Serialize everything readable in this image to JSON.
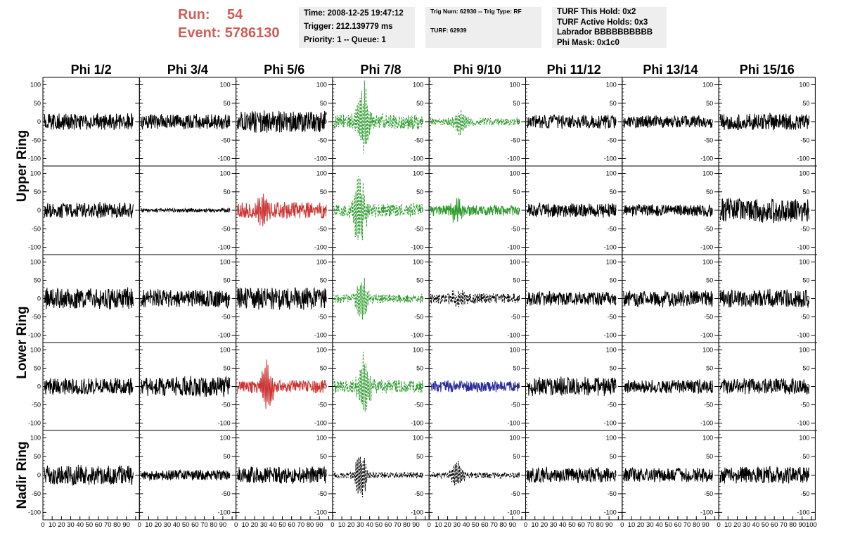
{
  "header": {
    "run_label": "Run:",
    "run_value": "54",
    "event_label": "Event:",
    "event_value": "5786130",
    "time_line": "Time: 2008-12-25 19:47:12",
    "trigger_line": "Trigger: 212.139779 ms",
    "priority_line": "Priority: 1 -- Queue: 1",
    "trig_line": "Trig Num: 62930 -- Trig Type: RF",
    "turf_line": "TURF: 62939",
    "turf_hold_line": "TURF This Hold: 0x2",
    "turf_active_line": "TURF Active Holds: 0x3",
    "labrador_line": "Labrador BBBBBBBBBB",
    "phimask_line": "Phi Mask: 0x1c0"
  },
  "colors": {
    "header_red": "#cc5f5a",
    "info_bg": "#eeeeee",
    "trace_default": "#000000",
    "trace_green": "#2a9a2a",
    "trace_red": "#cc3333",
    "trace_blue": "#2a2a9a"
  },
  "chart_data": {
    "type": "line",
    "description_columns": [
      "Phi 1/2",
      "Phi 3/4",
      "Phi 5/6",
      "Phi 7/8",
      "Phi 9/10",
      "Phi 11/12",
      "Phi 13/14",
      "Phi 15/16"
    ],
    "rows": [
      "Upper Ring",
      "Lower Ring",
      "Nadir Ring"
    ],
    "ylim": [
      -120,
      120
    ],
    "yticks": [
      -100,
      -50,
      0,
      50,
      100
    ],
    "xlim": [
      0,
      100
    ],
    "xticks": [
      0,
      10,
      20,
      30,
      40,
      50,
      60,
      70,
      80,
      90,
      100
    ],
    "panels": [
      {
        "row": 0,
        "col": 0,
        "color": "black",
        "style": "solid",
        "amp": 22
      },
      {
        "row": 0,
        "col": 1,
        "color": "black",
        "style": "solid",
        "amp": 20
      },
      {
        "row": 0,
        "col": 2,
        "color": "black",
        "style": "solid",
        "amp": 28
      },
      {
        "row": 0,
        "col": 3,
        "color": "green",
        "style": "dashed",
        "amp": 20,
        "pulse": 100
      },
      {
        "row": 0,
        "col": 4,
        "color": "green",
        "style": "dashed",
        "amp": 10,
        "pulse": 40
      },
      {
        "row": 0,
        "col": 5,
        "color": "black",
        "style": "solid",
        "amp": 18
      },
      {
        "row": 0,
        "col": 6,
        "color": "black",
        "style": "solid",
        "amp": 16
      },
      {
        "row": 0,
        "col": 7,
        "color": "black",
        "style": "solid",
        "amp": 22
      },
      {
        "row": 1,
        "col": 0,
        "color": "black",
        "style": "solid",
        "amp": 20
      },
      {
        "row": 1,
        "col": 1,
        "color": "black",
        "style": "solid",
        "amp": 5
      },
      {
        "row": 1,
        "col": 2,
        "color": "red",
        "style": "solid",
        "amp": 22,
        "pulse": 45
      },
      {
        "row": 1,
        "col": 3,
        "color": "green",
        "style": "dashed",
        "amp": 18,
        "pulse": 110
      },
      {
        "row": 1,
        "col": 4,
        "color": "green",
        "style": "solid",
        "amp": 14,
        "pulse": 30
      },
      {
        "row": 1,
        "col": 5,
        "color": "black",
        "style": "solid",
        "amp": 18
      },
      {
        "row": 1,
        "col": 6,
        "color": "black",
        "style": "solid",
        "amp": 16
      },
      {
        "row": 1,
        "col": 7,
        "color": "black",
        "style": "solid",
        "amp": 32
      },
      {
        "row": 2,
        "col": 0,
        "color": "black",
        "style": "solid",
        "amp": 28
      },
      {
        "row": 2,
        "col": 1,
        "color": "black",
        "style": "solid",
        "amp": 24
      },
      {
        "row": 2,
        "col": 2,
        "color": "black",
        "style": "solid",
        "amp": 30
      },
      {
        "row": 2,
        "col": 3,
        "color": "green",
        "style": "dashed",
        "amp": 12,
        "pulse": 65
      },
      {
        "row": 2,
        "col": 4,
        "color": "black",
        "style": "dashed",
        "amp": 14,
        "pulse": 25
      },
      {
        "row": 2,
        "col": 5,
        "color": "black",
        "style": "solid",
        "amp": 18
      },
      {
        "row": 2,
        "col": 6,
        "color": "black",
        "style": "solid",
        "amp": 22
      },
      {
        "row": 2,
        "col": 7,
        "color": "black",
        "style": "solid",
        "amp": 24
      },
      {
        "row": 3,
        "col": 0,
        "color": "black",
        "style": "solid",
        "amp": 22
      },
      {
        "row": 3,
        "col": 1,
        "color": "black",
        "style": "solid",
        "amp": 26
      },
      {
        "row": 3,
        "col": 2,
        "color": "red",
        "style": "solid",
        "amp": 18,
        "pulse": 70
      },
      {
        "row": 3,
        "col": 3,
        "color": "green",
        "style": "dashed",
        "amp": 18,
        "pulse": 95
      },
      {
        "row": 3,
        "col": 4,
        "color": "blue",
        "style": "solid",
        "amp": 16
      },
      {
        "row": 3,
        "col": 5,
        "color": "black",
        "style": "solid",
        "amp": 24
      },
      {
        "row": 3,
        "col": 6,
        "color": "black",
        "style": "solid",
        "amp": 18
      },
      {
        "row": 3,
        "col": 7,
        "color": "black",
        "style": "solid",
        "amp": 22
      },
      {
        "row": 4,
        "col": 0,
        "color": "black",
        "style": "solid",
        "amp": 26
      },
      {
        "row": 4,
        "col": 1,
        "color": "black",
        "style": "solid",
        "amp": 14
      },
      {
        "row": 4,
        "col": 2,
        "color": "black",
        "style": "solid",
        "amp": 22
      },
      {
        "row": 4,
        "col": 3,
        "color": "black",
        "style": "dashed",
        "amp": 8,
        "pulse": 70
      },
      {
        "row": 4,
        "col": 4,
        "color": "black",
        "style": "dashed",
        "amp": 8,
        "pulse": 40
      },
      {
        "row": 4,
        "col": 5,
        "color": "black",
        "style": "solid",
        "amp": 20
      },
      {
        "row": 4,
        "col": 6,
        "color": "black",
        "style": "solid",
        "amp": 18
      },
      {
        "row": 4,
        "col": 7,
        "color": "black",
        "style": "solid",
        "amp": 22
      }
    ]
  }
}
